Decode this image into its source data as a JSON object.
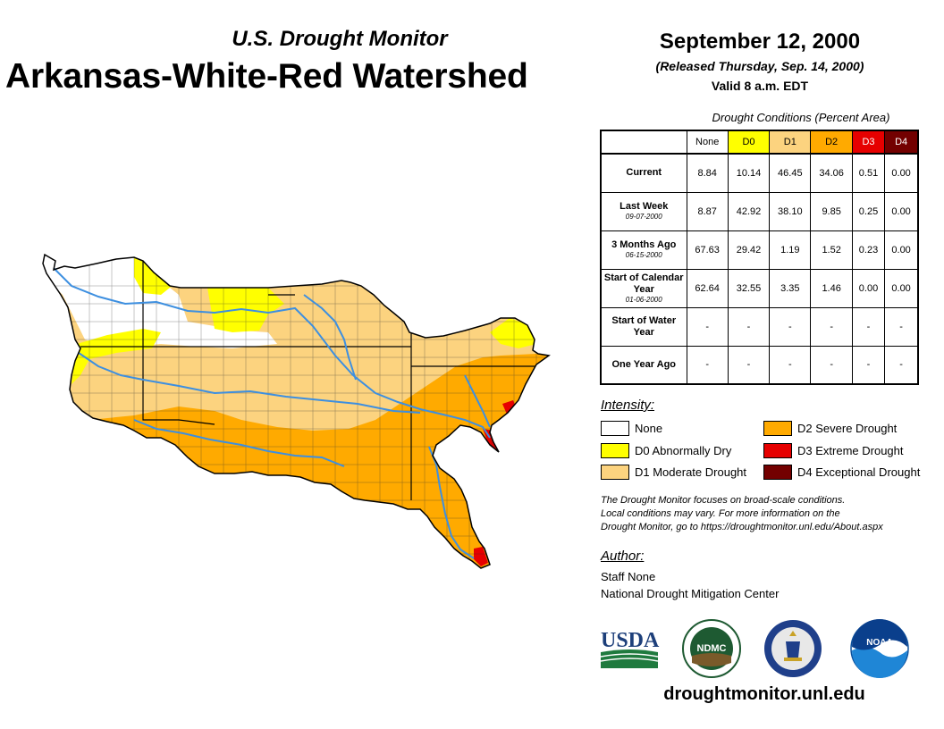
{
  "header": {
    "subtitle": "U.S. Drought Monitor",
    "title": "Arkansas-White-Red Watershed",
    "date": "September 12, 2000",
    "released": "(Released Thursday, Sep. 14, 2000)",
    "valid": "Valid 8 a.m. EDT"
  },
  "table": {
    "caption": "Drought Conditions (Percent Area)",
    "columns": [
      {
        "label": "None",
        "color": "#ffffff",
        "text_color": "#000000"
      },
      {
        "label": "D0",
        "color": "#ffff00",
        "text_color": "#000000"
      },
      {
        "label": "D1",
        "color": "#fcd37f",
        "text_color": "#000000"
      },
      {
        "label": "D2",
        "color": "#ffaa00",
        "text_color": "#000000"
      },
      {
        "label": "D3",
        "color": "#e60000",
        "text_color": "#ffffff"
      },
      {
        "label": "D4",
        "color": "#730000",
        "text_color": "#ffffff"
      }
    ],
    "rows": [
      {
        "label": "Current",
        "date": "",
        "values": [
          "8.84",
          "10.14",
          "46.45",
          "34.06",
          "0.51",
          "0.00"
        ]
      },
      {
        "label": "Last Week",
        "date": "09-07-2000",
        "values": [
          "8.87",
          "42.92",
          "38.10",
          "9.85",
          "0.25",
          "0.00"
        ]
      },
      {
        "label": "3 Months Ago",
        "date": "06-15-2000",
        "values": [
          "67.63",
          "29.42",
          "1.19",
          "1.52",
          "0.23",
          "0.00"
        ]
      },
      {
        "label": "Start of Calendar Year",
        "date": "01-06-2000",
        "values": [
          "62.64",
          "32.55",
          "3.35",
          "1.46",
          "0.00",
          "0.00"
        ]
      },
      {
        "label": "Start of Water Year",
        "date": "",
        "values": [
          "-",
          "-",
          "-",
          "-",
          "-",
          "-"
        ]
      },
      {
        "label": "One Year Ago",
        "date": "",
        "values": [
          "-",
          "-",
          "-",
          "-",
          "-",
          "-"
        ]
      }
    ]
  },
  "legend": {
    "heading": "Intensity:",
    "items": [
      {
        "label": "None",
        "color": "#ffffff"
      },
      {
        "label": "D0 Abnormally Dry",
        "color": "#ffff00"
      },
      {
        "label": "D1 Moderate Drought",
        "color": "#fcd37f"
      },
      {
        "label": "D2 Severe Drought",
        "color": "#ffaa00"
      },
      {
        "label": "D3 Extreme Drought",
        "color": "#e60000"
      },
      {
        "label": "D4 Exceptional Drought",
        "color": "#730000"
      }
    ]
  },
  "note": {
    "line1": "The Drought Monitor focuses on broad-scale conditions.",
    "line2": "Local conditions may vary. For more information on the",
    "line3": "Drought Monitor, go to https://droughtmonitor.unl.edu/About.aspx"
  },
  "author": {
    "heading": "Author:",
    "name": "Staff None",
    "org": "National Drought Mitigation Center"
  },
  "logos": {
    "usda": "USDA",
    "ndmc": "NDMC",
    "noaa": "NOAA"
  },
  "website": "droughtmonitor.unl.edu",
  "map": {
    "river_color": "#3d8fe0",
    "boundary_color": "#000000"
  }
}
